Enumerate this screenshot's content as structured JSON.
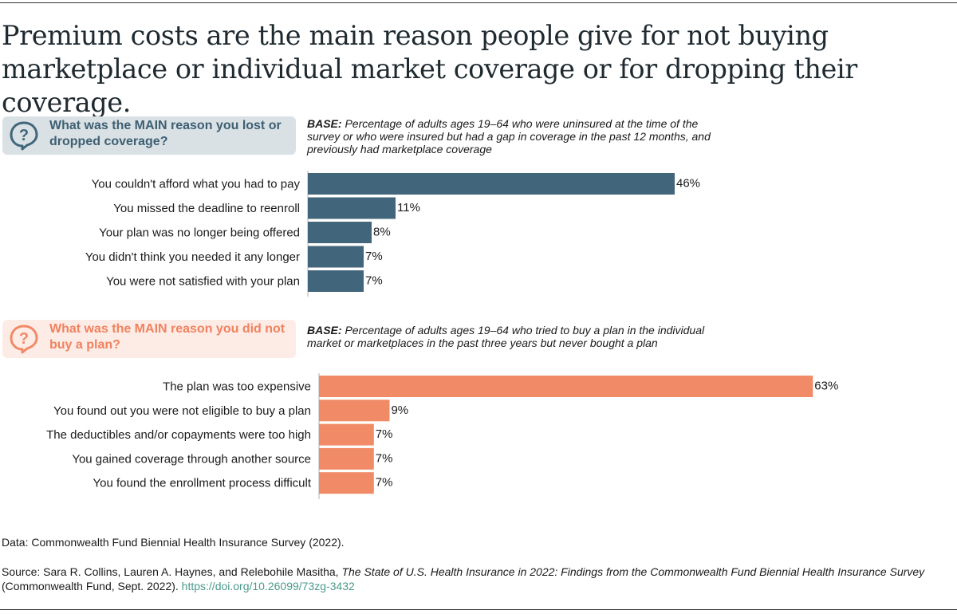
{
  "title": "Premium costs are the main reason people give for not buying marketplace or individual market coverage or for dropping their coverage.",
  "colors": {
    "panel1": "#41657a",
    "panel2": "#f08a67",
    "axis": "#b0b0b0"
  },
  "panels": [
    {
      "question": "What was the MAIN reason you lost or dropped coverage?",
      "base_label": "BASE:",
      "base_text": "Percentage of adults ages 19–64 who were uninsured at the time of the survey or who were insured but had a gap in coverage in the past 12 months, and previously had marketplace coverage",
      "icon": "question-bubble-icon"
    },
    {
      "question": "What was the MAIN reason you did not buy a plan?",
      "base_label": "BASE:",
      "base_text": "Percentage of adults ages 19–64 who tried to buy a plan in the individual market or marketplaces in the past three years but never bought a plan",
      "icon": "question-bubble-icon"
    }
  ],
  "chart_data": [
    {
      "type": "bar",
      "orientation": "horizontal",
      "categories": [
        "You couldn't afford what you had to pay",
        "You missed the deadline to reenroll",
        "Your plan was no longer being offered",
        "You didn't think you needed it any longer",
        "You were not satisfied with your plan"
      ],
      "values": [
        46,
        11,
        8,
        7,
        7
      ],
      "value_labels": [
        "46%",
        "11%",
        "8%",
        "7%",
        "7%"
      ],
      "unit": "%",
      "xlim": [
        0,
        100
      ]
    },
    {
      "type": "bar",
      "orientation": "horizontal",
      "categories": [
        "The plan was too expensive",
        "You found out you were not eligible to buy a plan",
        "The deductibles and/or copayments were too high",
        "You gained coverage through another source",
        "You found the enrollment process difficult"
      ],
      "values": [
        63,
        9,
        7,
        7,
        7
      ],
      "value_labels": [
        "63%",
        "9%",
        "7%",
        "7%",
        "7%"
      ],
      "unit": "%",
      "xlim": [
        0,
        100
      ]
    }
  ],
  "notes": {
    "data_note": "Data: Commonwealth Fund Biennial Health Insurance Survey (2022).",
    "source_prefix": "Source: Sara R. Collins, Lauren A. Haynes, and Relebohile Masitha, ",
    "source_title": "The State of U.S. Health Insurance in 2022: Findings from the Commonwealth Fund Biennial Health Insurance Survey",
    "source_suffix": " (Commonwealth Fund, Sept. 2022). ",
    "source_link": "https://doi.org/10.26099/73zg-3432"
  }
}
